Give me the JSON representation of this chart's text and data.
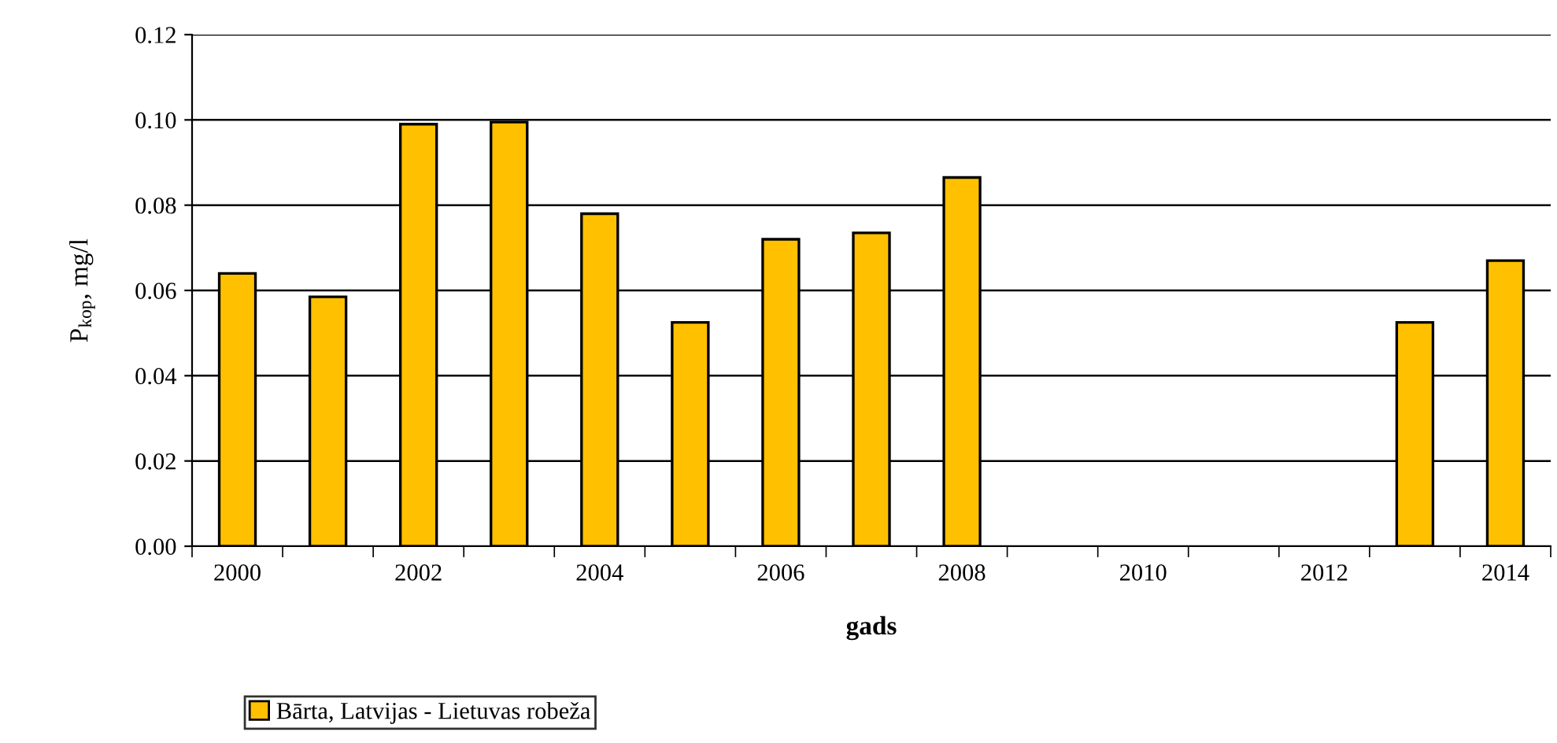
{
  "chart_data": {
    "type": "bar",
    "xlabel": "gads",
    "ylabel": "P$_{kop}$, mg/l",
    "categories": [
      "2000",
      null,
      "2002",
      null,
      "2004",
      null,
      "2006",
      null,
      "2008",
      null,
      "2010",
      null,
      "2012",
      null,
      "2014"
    ],
    "series": [
      {
        "name": "Bārta, Latvijas - Lietuvas robeža",
        "color": "#ffc000",
        "values": [
          0.064,
          0.0585,
          0.099,
          0.0995,
          0.078,
          0.0525,
          0.072,
          0.0735,
          0.0865,
          null,
          null,
          null,
          null,
          0.0525,
          0.067
        ]
      }
    ],
    "ylim": [
      0,
      0.12
    ],
    "yticks": [
      {
        "value": 0,
        "label": "0.00"
      },
      {
        "value": 0.02,
        "label": "0.02"
      },
      {
        "value": 0.04,
        "label": "0.04"
      },
      {
        "value": 0.06,
        "label": "0.06"
      },
      {
        "value": 0.08,
        "label": "0.08"
      },
      {
        "value": 0.1,
        "label": "0.10"
      },
      {
        "value": 0.12,
        "label": "0.12"
      }
    ],
    "grid": "y",
    "legend": "bottom left"
  }
}
